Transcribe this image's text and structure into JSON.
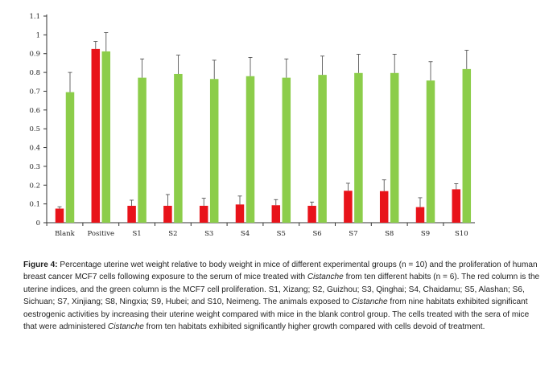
{
  "chart_data": {
    "type": "bar",
    "categories": [
      "Blank",
      "Positive",
      "S1",
      "S2",
      "S3",
      "S4",
      "S5",
      "S6",
      "S7",
      "S8",
      "S9",
      "S10"
    ],
    "ylim": [
      0,
      1.1
    ],
    "yticks": [
      "0",
      "0.1",
      "0.2",
      "0.3",
      "0.4",
      "0.5",
      "0.6",
      "0.7",
      "0.8",
      "0.9",
      "1",
      "1.1"
    ],
    "series": [
      {
        "color": "#e8131a",
        "values": [
          0.075,
          0.925,
          0.09,
          0.09,
          0.09,
          0.097,
          0.093,
          0.09,
          0.17,
          0.168,
          0.083,
          0.178
        ],
        "errors": [
          0.01,
          0.04,
          0.03,
          0.06,
          0.04,
          0.045,
          0.03,
          0.02,
          0.04,
          0.06,
          0.05,
          0.03
        ]
      },
      {
        "color": "#8ccd4a",
        "values": [
          0.695,
          0.912,
          0.772,
          0.792,
          0.765,
          0.78,
          0.772,
          0.787,
          0.797,
          0.797,
          0.757,
          0.818
        ],
        "errors": [
          0.105,
          0.1,
          0.1,
          0.1,
          0.1,
          0.1,
          0.1,
          0.1,
          0.1,
          0.1,
          0.1,
          0.1
        ]
      }
    ],
    "grid": false,
    "legend": "none"
  },
  "caption": {
    "label": "Figure 4:",
    "part1": " Percentage uterine wet weight relative to body weight in mice of different experimental groups (n = 10) and the proliferation of human breast cancer MCF7 cells following exposure to the serum of mice treated with ",
    "italic1": "Cistanche",
    "part2": " from ten different habits (n = 6). The red column is the uterine indices, and the green column is the MCF7 cell proliferation. S1, Xizang; S2, Guizhou; S3, Qinghai; S4, Chaidamu; S5, Alashan; S6, Sichuan; S7, Xinjiang; S8, Ningxia; S9, Hubei; and S10, Neimeng. The animals exposed to ",
    "italic2": "Cistanche",
    "part3": " from nine habitats exhibited significant oestrogenic activities by increasing their uterine weight compared with mice in the blank control group. The cells treated with the sera of mice that were administered ",
    "italic3": "Cistanche",
    "part4": " from ten habitats exhibited significantly higher growth compared with cells devoid of treatment."
  }
}
